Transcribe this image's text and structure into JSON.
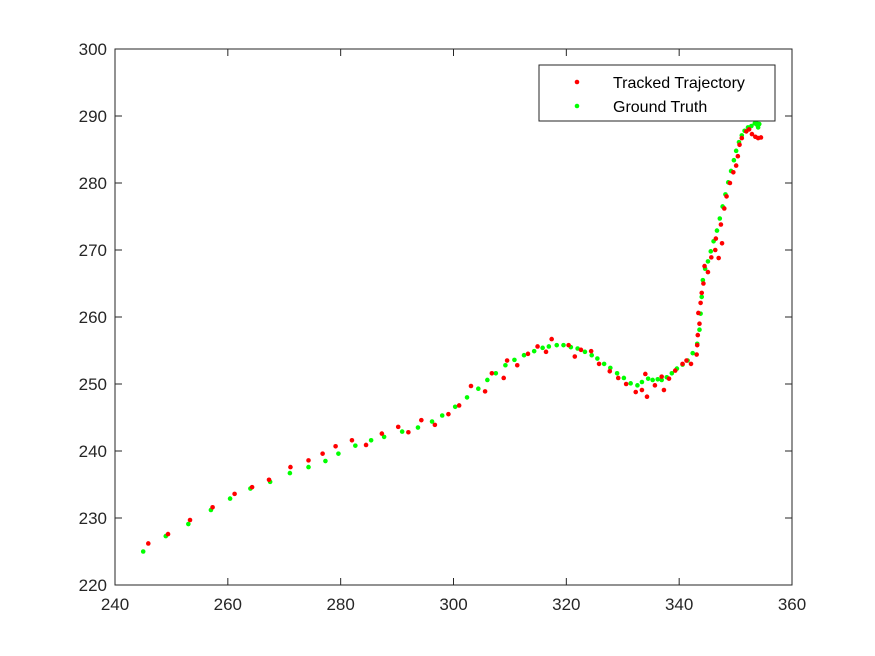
{
  "chart_data": {
    "type": "scatter",
    "xlim": [
      240,
      360
    ],
    "ylim": [
      220,
      300
    ],
    "x_ticks": [
      240,
      260,
      280,
      300,
      320,
      340,
      360
    ],
    "y_ticks": [
      220,
      230,
      240,
      250,
      260,
      270,
      280,
      290,
      300
    ],
    "grid": false,
    "legend_position": "top-right",
    "series": [
      {
        "name": "Tracked Trajectory",
        "color": "#ff0000",
        "x": [
          245.9,
          249.4,
          253.3,
          257.3,
          261.2,
          264.3,
          267.3,
          271.1,
          274.3,
          276.8,
          279.1,
          282.0,
          284.5,
          287.3,
          290.2,
          292.0,
          294.3,
          296.7,
          299.1,
          301.0,
          303.1,
          305.6,
          306.8,
          308.9,
          309.5,
          311.3,
          313.2,
          314.9,
          316.4,
          317.4,
          320.4,
          321.5,
          322.6,
          324.4,
          325.8,
          327.7,
          329.2,
          330.6,
          332.3,
          333.4,
          334.3,
          334.0,
          335.7,
          336.9,
          337.3,
          338.2,
          339.3,
          340.6,
          341.3,
          342.1,
          343.1,
          343.2,
          343.3,
          343.6,
          343.4,
          343.8,
          344.0,
          344.3,
          344.5,
          345.1,
          345.7,
          346.4,
          346.5,
          347.0,
          347.4,
          347.6,
          348.0,
          348.4,
          349.0,
          349.6,
          350.1,
          350.4,
          350.7,
          351.1,
          351.9,
          352.4,
          352.9,
          353.5,
          354.0,
          354.5
        ],
        "y": [
          226.2,
          227.6,
          229.7,
          231.6,
          233.6,
          234.6,
          235.7,
          237.6,
          238.6,
          239.6,
          240.7,
          241.6,
          240.9,
          242.6,
          243.6,
          242.8,
          244.6,
          243.9,
          245.5,
          246.8,
          249.7,
          248.9,
          251.6,
          250.9,
          253.5,
          252.8,
          254.5,
          255.6,
          254.8,
          256.7,
          255.8,
          254.1,
          255.1,
          254.9,
          253.0,
          251.9,
          250.9,
          250.0,
          248.8,
          249.1,
          248.1,
          251.5,
          249.8,
          251.1,
          249.1,
          250.8,
          252.0,
          253.0,
          253.5,
          253.0,
          254.4,
          255.8,
          257.3,
          259.0,
          260.6,
          262.1,
          263.6,
          265.0,
          267.6,
          266.7,
          268.9,
          270.0,
          271.7,
          268.8,
          273.8,
          271.0,
          276.2,
          278.0,
          280.0,
          281.6,
          282.6,
          284.0,
          285.7,
          286.7,
          287.7,
          288.0,
          287.3,
          286.9,
          286.7,
          286.8
        ]
      },
      {
        "name": "Ground Truth",
        "color": "#00ff00",
        "x": [
          245.0,
          249.0,
          253.0,
          257.0,
          260.4,
          264.0,
          267.5,
          271.0,
          274.3,
          277.3,
          279.6,
          282.6,
          285.4,
          287.7,
          290.9,
          293.7,
          296.2,
          298.0,
          300.3,
          302.4,
          304.4,
          306.0,
          307.5,
          309.2,
          310.8,
          312.5,
          314.3,
          315.8,
          316.9,
          318.3,
          319.5,
          320.8,
          322.0,
          323.3,
          324.5,
          325.5,
          326.7,
          327.8,
          329.0,
          330.2,
          331.4,
          332.6,
          333.4,
          334.5,
          335.3,
          336.2,
          336.9,
          337.8,
          338.7,
          339.6,
          340.6,
          341.5,
          342.4,
          343.2,
          343.6,
          343.8,
          344.0,
          344.2,
          344.6,
          345.1,
          345.6,
          346.1,
          346.7,
          347.2,
          347.7,
          348.2,
          348.7,
          349.2,
          349.7,
          350.1,
          350.6,
          351.1,
          351.6,
          352.2,
          352.8,
          353.4,
          353.8,
          354.0,
          354.2,
          353.7
        ],
        "y": [
          225.0,
          227.3,
          229.1,
          231.2,
          232.9,
          234.4,
          235.4,
          236.7,
          237.6,
          238.5,
          239.6,
          240.8,
          241.6,
          242.1,
          242.9,
          243.5,
          244.4,
          245.3,
          246.6,
          248.0,
          249.3,
          250.6,
          251.6,
          252.8,
          253.6,
          254.3,
          254.9,
          255.4,
          255.6,
          255.8,
          255.8,
          255.5,
          255.3,
          254.8,
          254.3,
          253.8,
          253.0,
          252.4,
          251.6,
          250.9,
          250.1,
          249.8,
          250.3,
          250.8,
          250.6,
          250.7,
          250.6,
          251.0,
          251.6,
          252.3,
          252.9,
          253.5,
          254.6,
          256.0,
          258.1,
          260.5,
          263.0,
          265.5,
          267.2,
          268.3,
          269.8,
          271.3,
          272.9,
          274.7,
          276.5,
          278.3,
          280.1,
          281.8,
          283.4,
          284.8,
          286.1,
          287.1,
          287.8,
          288.3,
          288.5,
          288.9,
          288.7,
          288.3,
          288.8,
          289.0
        ]
      }
    ]
  }
}
